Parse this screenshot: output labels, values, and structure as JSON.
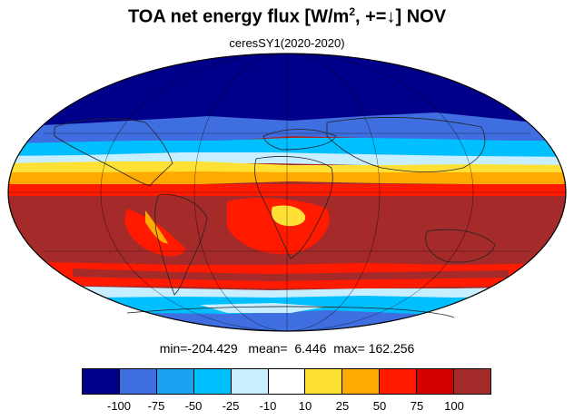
{
  "title": {
    "main": "TOA net energy flux  [W/m",
    "sup": "2",
    "tail": ", +=↓] NOV"
  },
  "subtitle": "ceresSY1(2020-2020)",
  "stats": {
    "min_label": "min=",
    "min": "-204.429",
    "mean_label": "mean=",
    "mean": "6.446",
    "max_label": "max=",
    "max": "162.256"
  },
  "colorbar": {
    "colors": [
      "#00008b",
      "#3f6ee0",
      "#1aa3f0",
      "#00bfff",
      "#c8efff",
      "#ffffff",
      "#ffe135",
      "#ffaa00",
      "#ff1a00",
      "#d40000",
      "#a52a2a"
    ],
    "labels": [
      "-100",
      "-75",
      "-50",
      "-25",
      "-10",
      "10",
      "25",
      "50",
      "75",
      "100"
    ]
  },
  "map": {
    "projection": "Mollweide",
    "zone_colors": {
      "deep_negative": "#00008b",
      "negative": "#3f6ee0",
      "mid_negative": "#00bfff",
      "light_negative": "#c8efff",
      "neutral": "#ffffff",
      "light_positive": "#ffe135",
      "mid_positive": "#ffaa00",
      "positive": "#ff1a00",
      "high_positive": "#a52a2a"
    }
  }
}
